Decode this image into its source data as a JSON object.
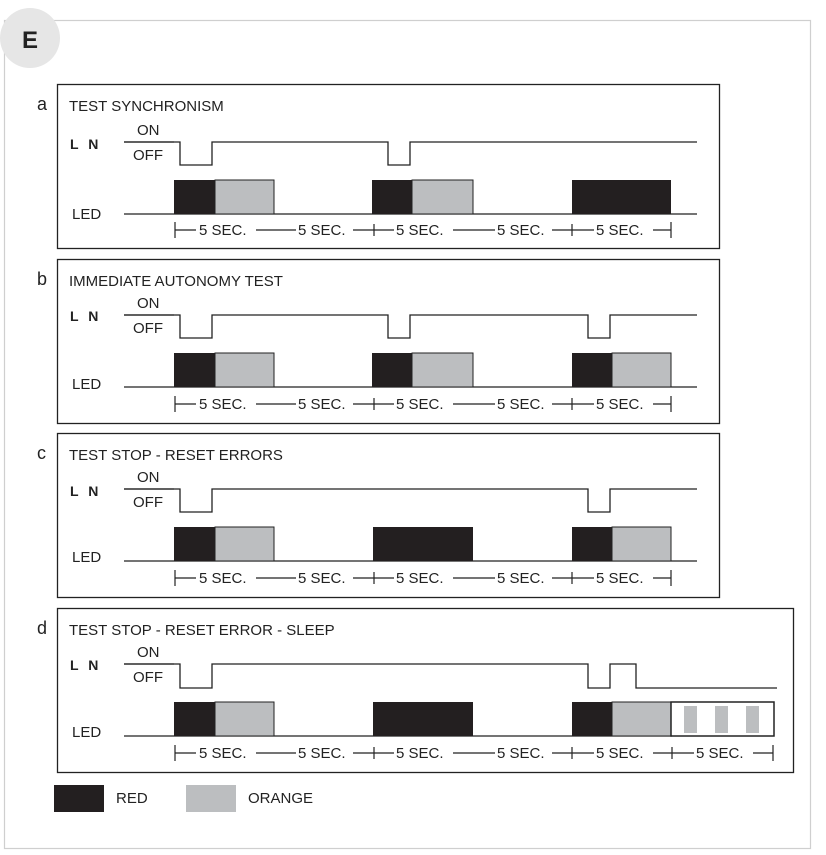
{
  "figure_badge": "E",
  "panels": [
    {
      "letter": "a",
      "title": "TEST SYNCHRONISM",
      "ln_label": "L N",
      "on_label": "ON",
      "off_label": "OFF",
      "led_label": "LED",
      "ln_pulses": [
        "off",
        "off"
      ],
      "led_blocks": [
        "red-orange",
        "red-orange",
        "red-red"
      ],
      "intervals": [
        "5 SEC.",
        "5 SEC.",
        "5 SEC.",
        "5 SEC.",
        "5 SEC."
      ]
    },
    {
      "letter": "b",
      "title": "IMMEDIATE AUTONOMY TEST",
      "ln_label": "L N",
      "on_label": "ON",
      "off_label": "OFF",
      "led_label": "LED",
      "ln_pulses": [
        "off",
        "off",
        "off"
      ],
      "led_blocks": [
        "red-orange",
        "red-orange",
        "red-orange"
      ],
      "intervals": [
        "5 SEC.",
        "5 SEC.",
        "5 SEC.",
        "5 SEC.",
        "5 SEC."
      ]
    },
    {
      "letter": "c",
      "title": "TEST STOP - RESET ERRORS",
      "ln_label": "L N",
      "on_label": "ON",
      "off_label": "OFF",
      "led_label": "LED",
      "ln_pulses": [
        "off",
        "off"
      ],
      "led_blocks": [
        "red-orange",
        "red-red",
        "red-orange"
      ],
      "intervals": [
        "5 SEC.",
        "5 SEC.",
        "5 SEC.",
        "5 SEC.",
        "5 SEC."
      ]
    },
    {
      "letter": "d",
      "title": "TEST STOP - RESET ERROR - SLEEP",
      "ln_label": "L N",
      "on_label": "ON",
      "off_label": "OFF",
      "led_label": "LED",
      "ln_pulses": [
        "off",
        "off",
        "off-stays-off"
      ],
      "led_blocks": [
        "red-orange",
        "red-red",
        "red-orange",
        "white-orange-striped"
      ],
      "intervals": [
        "5 SEC.",
        "5 SEC.",
        "5 SEC.",
        "5 SEC.",
        "5 SEC.",
        "5 SEC."
      ]
    }
  ],
  "legend": [
    {
      "label": "RED",
      "color": "#231f20"
    },
    {
      "label": "ORANGE",
      "color": "#bcbec0"
    }
  ],
  "colors": {
    "red": "#231f20",
    "orange": "#bcbec0",
    "line": "#222222",
    "frame": "#cfcfcf",
    "badge_bg": "#e6e6e6"
  }
}
